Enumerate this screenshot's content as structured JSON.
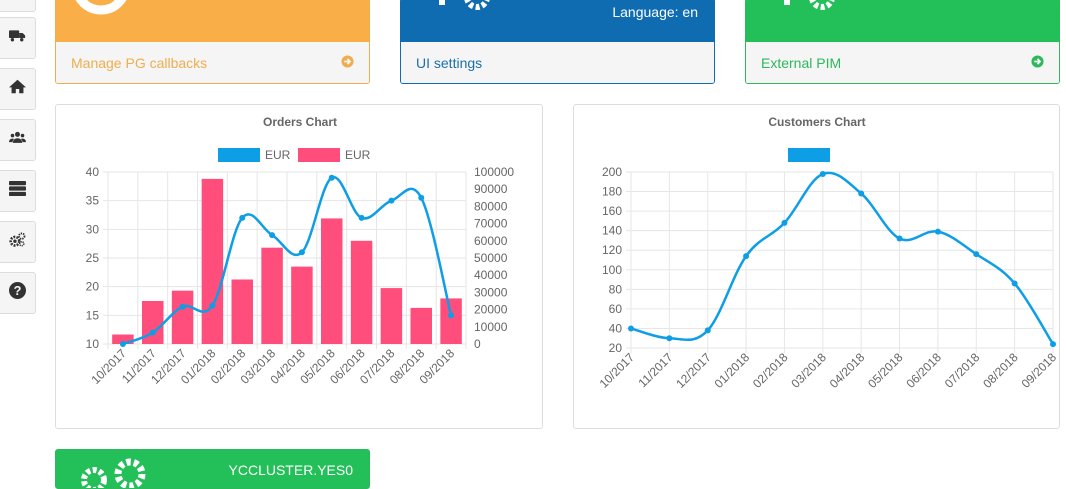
{
  "sidebar": {
    "items": [
      {
        "icon": "unknown-icon"
      },
      {
        "icon": "truck-icon"
      },
      {
        "icon": "home-icon"
      },
      {
        "icon": "users-icon"
      },
      {
        "icon": "server-icon"
      },
      {
        "icon": "gears-icon"
      },
      {
        "icon": "question-circle-icon"
      }
    ]
  },
  "tiles": {
    "pg_callbacks": {
      "label": "Manage PG callbacks",
      "color": "#f9ae48"
    },
    "ui_settings": {
      "label": "UI settings",
      "header_text": "Language: en",
      "color": "#0f6cb1"
    },
    "external_pim": {
      "label": "External PIM",
      "color": "#23bf59"
    },
    "cluster": {
      "header_text": "YCCLUSTER.YES0",
      "color": "#23bf59"
    }
  },
  "chart_data": [
    {
      "type": "bar",
      "title": "Orders Chart",
      "categories": [
        "10/2017",
        "11/2017",
        "12/2017",
        "01/2018",
        "02/2018",
        "03/2018",
        "04/2018",
        "05/2018",
        "06/2018",
        "07/2018",
        "08/2018",
        "09/2018"
      ],
      "series": [
        {
          "name": "EUR",
          "type": "line",
          "axis": "left",
          "color": "#0e9ee6",
          "values": [
            10,
            12,
            16.5,
            16.7,
            32,
            29,
            26,
            39,
            32,
            35,
            35.5,
            15
          ]
        },
        {
          "name": "EUR",
          "type": "bar",
          "axis": "right",
          "color": "#ff4d7c",
          "values": [
            5500,
            25000,
            31000,
            96000,
            37500,
            56000,
            45000,
            73000,
            60000,
            32500,
            21000,
            26500
          ]
        }
      ],
      "y_left": {
        "ylim": [
          10,
          40
        ],
        "ticks": [
          10,
          15,
          20,
          25,
          30,
          35,
          40
        ]
      },
      "y_right": {
        "ylim": [
          0,
          100000
        ],
        "ticks": [
          0,
          10000,
          20000,
          30000,
          40000,
          50000,
          60000,
          70000,
          80000,
          90000,
          100000
        ]
      },
      "grid": true,
      "legend": "top"
    },
    {
      "type": "line",
      "title": "Customers Chart",
      "categories": [
        "10/2017",
        "11/2017",
        "12/2017",
        "01/2018",
        "02/2018",
        "03/2018",
        "04/2018",
        "05/2018",
        "06/2018",
        "07/2018",
        "08/2018",
        "09/2018"
      ],
      "series": [
        {
          "name": "",
          "color": "#0e9ee6",
          "values": [
            40,
            30,
            38,
            114,
            148,
            198,
            178,
            132,
            139,
            116,
            86,
            24
          ]
        }
      ],
      "ylim": [
        20,
        200
      ],
      "yticks": [
        20,
        40,
        60,
        80,
        100,
        120,
        140,
        160,
        180,
        200
      ],
      "grid": true,
      "legend": "top"
    }
  ]
}
